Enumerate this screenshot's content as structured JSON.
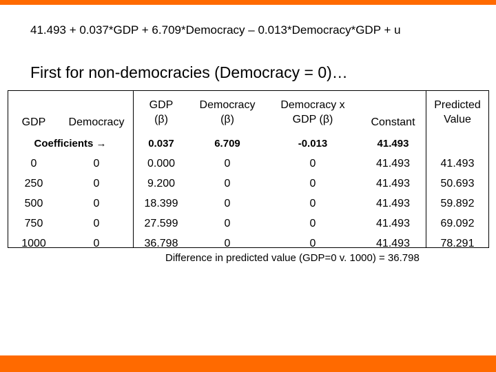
{
  "slide": {
    "equation": "41.493 + 0.037*GDP + 6.709*Democracy – 0.013*Democracy*GDP + u",
    "heading": "First for non-democracies (Democracy = 0)…",
    "caption": "Difference in predicted value (GDP=0 v. 1000) = 36.798",
    "accent_color": "#ff6a00"
  },
  "table": {
    "headers": {
      "gdp": "GDP",
      "democracy": "Democracy",
      "gdp_beta_1": "GDP",
      "gdp_beta_2": "(β)",
      "dem_beta_1": "Democracy",
      "dem_beta_2": "(β)",
      "inter_1": "Democracy x",
      "inter_2": "GDP (β)",
      "constant": "Constant",
      "pred_1": "Predicted",
      "pred_2": "Value"
    },
    "coefficients": {
      "label": "Coefficients",
      "arrow": "→",
      "gdp": "0.037",
      "democracy": "6.709",
      "interaction": "-0.013",
      "constant": "41.493"
    },
    "rows": [
      [
        "0",
        "0",
        "0.000",
        "0",
        "0",
        "41.493",
        "41.493"
      ],
      [
        "250",
        "0",
        "9.200",
        "0",
        "0",
        "41.493",
        "50.693"
      ],
      [
        "500",
        "0",
        "18.399",
        "0",
        "0",
        "41.493",
        "59.892"
      ],
      [
        "750",
        "0",
        "27.599",
        "0",
        "0",
        "41.493",
        "69.092"
      ],
      [
        "1000",
        "0",
        "36.798",
        "0",
        "0",
        "41.493",
        "78.291"
      ]
    ]
  }
}
